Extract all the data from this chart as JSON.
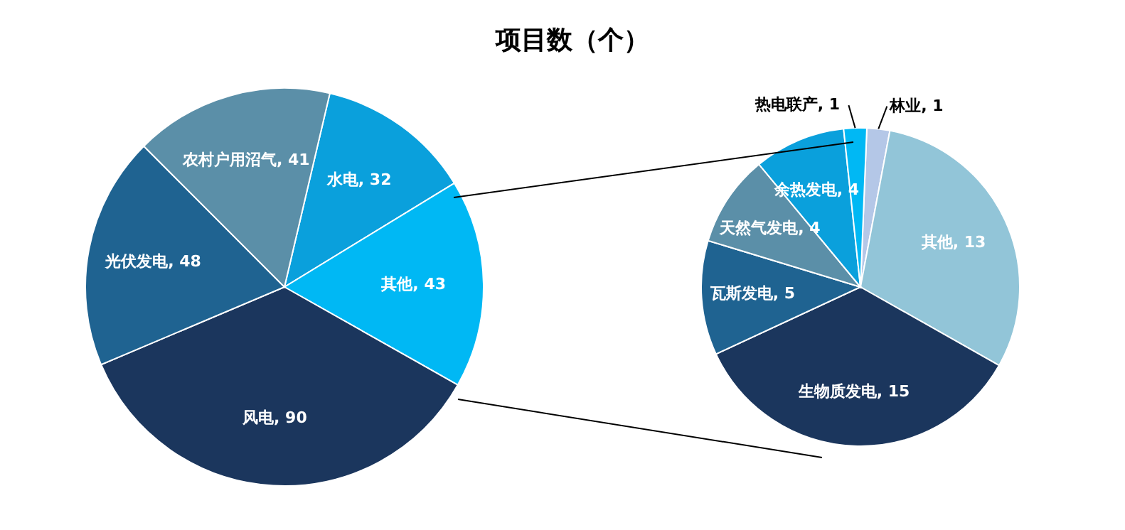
{
  "chart_data": [
    {
      "type": "pie",
      "title": "项目数（个）",
      "categories": [
        "水电",
        "其他",
        "风电",
        "光伏发电",
        "农村户用沼气"
      ],
      "values": [
        32,
        43,
        90,
        48,
        41
      ],
      "colors": [
        "#0aa0dc",
        "#00b8f4",
        "#1b365d",
        "#1f6391",
        "#5b8fa8"
      ],
      "value_labels": [
        ", 32",
        ", 43",
        ", 90",
        ", 48",
        ", 41"
      ]
    },
    {
      "type": "pie",
      "categories": [
        "林业",
        "其他",
        "生物质发电",
        "瓦斯发电",
        "天然气发电",
        "余热发电",
        "热电联产"
      ],
      "values": [
        1,
        13,
        15,
        5,
        4,
        4,
        1
      ],
      "colors": [
        "#b4c7e7",
        "#92c5d8",
        "#1b365d",
        "#1f6391",
        "#5b8fa8",
        "#0aa0dc",
        "#00b8f4"
      ],
      "value_labels": [
        ", 1",
        ", 13",
        ", 15",
        ", 5",
        ", 4",
        ", 4",
        ", 1"
      ]
    }
  ]
}
